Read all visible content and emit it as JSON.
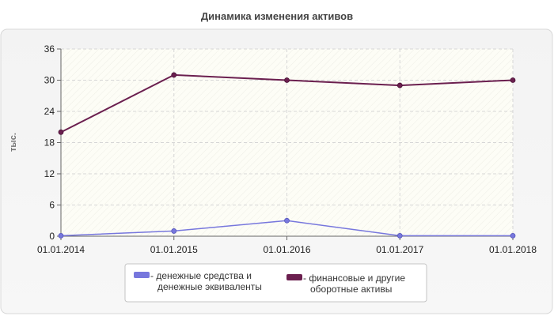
{
  "chart_data": {
    "type": "line",
    "title": "Динамика изменения активов",
    "ylabel": "тыс.",
    "xlabel": "",
    "categories": [
      "01.01.2014",
      "01.01.2015",
      "01.01.2016",
      "01.01.2017",
      "01.01.2018"
    ],
    "yticks": [
      "0",
      "6",
      "12",
      "18",
      "24",
      "30",
      "36"
    ],
    "ylim": [
      0,
      36
    ],
    "grid": true,
    "legend_position": "bottom",
    "series": [
      {
        "name_lines": [
          "денежные средства и",
          "денежные эквиваленты"
        ],
        "color": "#7777dd",
        "values": [
          0.1,
          1.0,
          3.0,
          0.1,
          0.1
        ]
      },
      {
        "name_lines": [
          "финансовые и другие",
          "оборотные активы"
        ],
        "color": "#6b1f4f",
        "values": [
          20.0,
          31.0,
          30.0,
          29.0,
          30.0
        ]
      }
    ]
  }
}
